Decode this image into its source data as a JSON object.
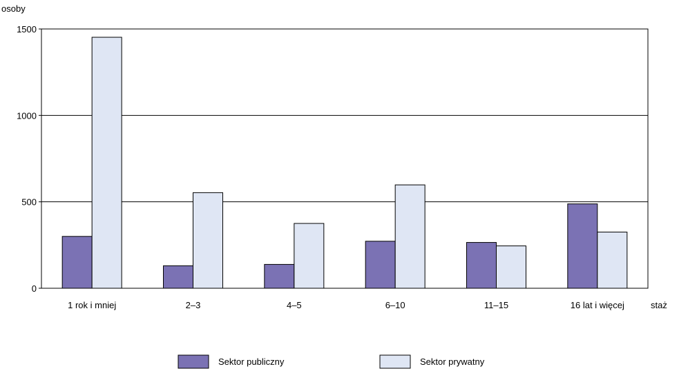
{
  "chart_data": {
    "type": "bar",
    "ylabel": "osoby",
    "xlabel": "staż",
    "categories": [
      "1 rok i mniej",
      "2–3",
      "4–5",
      "6–10",
      "11–15",
      "16 lat i więcej"
    ],
    "series": [
      {
        "name": "Sektor publiczny",
        "color": "#7b72b4",
        "values": [
          300,
          130,
          138,
          272,
          265,
          488
        ]
      },
      {
        "name": "Sektor prywatny",
        "color": "#dfe6f4",
        "values": [
          1452,
          553,
          375,
          598,
          245,
          325
        ]
      }
    ],
    "ylim": [
      0,
      1500
    ],
    "yticks": [
      0,
      500,
      1000,
      1500
    ],
    "grid": true,
    "legend": "bottom",
    "bar_stroke": "#000000"
  }
}
